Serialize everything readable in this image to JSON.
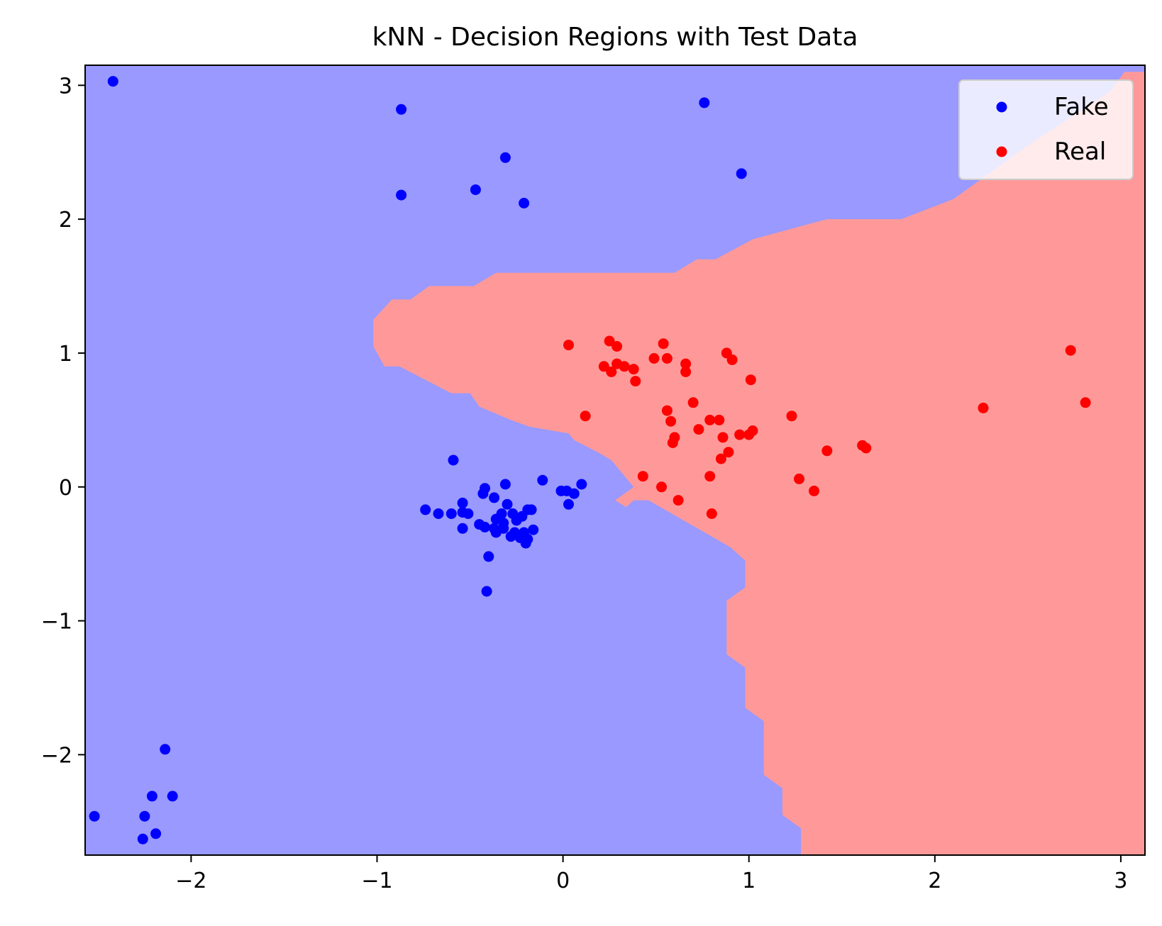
{
  "chart_data": {
    "type": "scatter",
    "title": "kNN - Decision Regions with Test Data",
    "xlabel": "",
    "ylabel": "",
    "xlim": [
      -2.57,
      3.13
    ],
    "ylim": [
      -2.75,
      3.15
    ],
    "x_ticks": [
      {
        "value": -2,
        "label": "−2"
      },
      {
        "value": -1,
        "label": "−1"
      },
      {
        "value": 0,
        "label": "0"
      },
      {
        "value": 1,
        "label": "1"
      },
      {
        "value": 2,
        "label": "2"
      },
      {
        "value": 3,
        "label": "3"
      }
    ],
    "y_ticks": [
      {
        "value": -2,
        "label": "−2"
      },
      {
        "value": -1,
        "label": "−1"
      },
      {
        "value": 0,
        "label": "0"
      },
      {
        "value": 1,
        "label": "1"
      },
      {
        "value": 2,
        "label": "2"
      },
      {
        "value": 3,
        "label": "3"
      }
    ],
    "grid": false,
    "legend_position": "top-right",
    "regions": [
      {
        "class": "Fake",
        "color": "#9999ff",
        "extent": "full"
      },
      {
        "class": "Real",
        "color": "#ff9999",
        "boundary": [
          [
            3.13,
            3.1
          ],
          [
            3.13,
            -2.75
          ],
          [
            1.28,
            -2.75
          ],
          [
            1.28,
            -2.55
          ],
          [
            1.18,
            -2.45
          ],
          [
            1.18,
            -2.25
          ],
          [
            1.08,
            -2.15
          ],
          [
            1.08,
            -1.75
          ],
          [
            0.98,
            -1.65
          ],
          [
            0.98,
            -1.35
          ],
          [
            0.88,
            -1.25
          ],
          [
            0.88,
            -0.85
          ],
          [
            0.98,
            -0.75
          ],
          [
            0.98,
            -0.55
          ],
          [
            0.9,
            -0.45
          ],
          [
            0.46,
            -0.1
          ],
          [
            0.4,
            -0.1
          ],
          [
            0.38,
            -0.1
          ],
          [
            0.34,
            -0.15
          ],
          [
            0.28,
            -0.1
          ],
          [
            0.38,
            0.0
          ],
          [
            0.26,
            0.2
          ],
          [
            0.2,
            0.25
          ],
          [
            0.06,
            0.35
          ],
          [
            0.03,
            0.4
          ],
          [
            -0.18,
            0.45
          ],
          [
            -0.28,
            0.5
          ],
          [
            -0.45,
            0.6
          ],
          [
            -0.5,
            0.7
          ],
          [
            -0.6,
            0.7
          ],
          [
            -0.88,
            0.9
          ],
          [
            -0.96,
            0.9
          ],
          [
            -1.02,
            1.05
          ],
          [
            -1.02,
            1.25
          ],
          [
            -0.92,
            1.4
          ],
          [
            -0.82,
            1.4
          ],
          [
            -0.72,
            1.5
          ],
          [
            -0.48,
            1.5
          ],
          [
            -0.36,
            1.6
          ],
          [
            0.6,
            1.6
          ],
          [
            0.72,
            1.7
          ],
          [
            0.82,
            1.7
          ],
          [
            1.02,
            1.85
          ],
          [
            1.42,
            2.0
          ],
          [
            1.82,
            2.0
          ],
          [
            2.1,
            2.15
          ],
          [
            2.3,
            2.35
          ],
          [
            2.5,
            2.55
          ],
          [
            2.72,
            2.75
          ],
          [
            2.94,
            2.95
          ],
          [
            3.02,
            3.1
          ]
        ]
      }
    ],
    "series": [
      {
        "name": "Fake",
        "color": "#0000ff",
        "points": [
          [
            -2.42,
            3.03
          ],
          [
            -0.87,
            2.82
          ],
          [
            -0.87,
            2.18
          ],
          [
            -0.47,
            2.22
          ],
          [
            -0.31,
            2.46
          ],
          [
            -0.21,
            2.12
          ],
          [
            0.76,
            2.87
          ],
          [
            0.96,
            2.34
          ],
          [
            -0.59,
            0.2
          ],
          [
            -0.11,
            0.05
          ],
          [
            0.1,
            0.02
          ],
          [
            -0.31,
            0.02
          ],
          [
            -0.42,
            -0.01
          ],
          [
            -0.01,
            -0.03
          ],
          [
            0.02,
            -0.03
          ],
          [
            0.06,
            -0.05
          ],
          [
            -0.43,
            -0.05
          ],
          [
            -0.37,
            -0.08
          ],
          [
            0.03,
            -0.13
          ],
          [
            -0.54,
            -0.12
          ],
          [
            -0.3,
            -0.13
          ],
          [
            -0.74,
            -0.17
          ],
          [
            -0.19,
            -0.17
          ],
          [
            -0.67,
            -0.2
          ],
          [
            -0.6,
            -0.2
          ],
          [
            -0.54,
            -0.19
          ],
          [
            -0.17,
            -0.17
          ],
          [
            -0.51,
            -0.2
          ],
          [
            -0.33,
            -0.2
          ],
          [
            -0.27,
            -0.2
          ],
          [
            -0.22,
            -0.22
          ],
          [
            -0.36,
            -0.24
          ],
          [
            -0.34,
            -0.23
          ],
          [
            -0.25,
            -0.25
          ],
          [
            -0.32,
            -0.27
          ],
          [
            -0.45,
            -0.28
          ],
          [
            -0.42,
            -0.3
          ],
          [
            -0.54,
            -0.31
          ],
          [
            -0.37,
            -0.31
          ],
          [
            -0.32,
            -0.31
          ],
          [
            -0.16,
            -0.32
          ],
          [
            -0.21,
            -0.34
          ],
          [
            -0.36,
            -0.34
          ],
          [
            -0.26,
            -0.34
          ],
          [
            -0.28,
            -0.37
          ],
          [
            -0.23,
            -0.38
          ],
          [
            -0.19,
            -0.39
          ],
          [
            -0.2,
            -0.42
          ],
          [
            -0.4,
            -0.52
          ],
          [
            -0.41,
            -0.78
          ],
          [
            -2.14,
            -1.96
          ],
          [
            -2.21,
            -2.31
          ],
          [
            -2.1,
            -2.31
          ],
          [
            -2.52,
            -2.46
          ],
          [
            -2.25,
            -2.46
          ],
          [
            -2.19,
            -2.59
          ],
          [
            -2.26,
            -2.63
          ]
        ]
      },
      {
        "name": "Real",
        "color": "#ff0000",
        "points": [
          [
            0.03,
            1.06
          ],
          [
            0.25,
            1.09
          ],
          [
            0.29,
            1.05
          ],
          [
            0.54,
            1.07
          ],
          [
            0.22,
            0.9
          ],
          [
            0.29,
            0.92
          ],
          [
            0.33,
            0.9
          ],
          [
            0.38,
            0.88
          ],
          [
            0.26,
            0.86
          ],
          [
            0.49,
            0.96
          ],
          [
            0.56,
            0.96
          ],
          [
            0.66,
            0.92
          ],
          [
            0.66,
            0.86
          ],
          [
            0.88,
            1.0
          ],
          [
            0.91,
            0.95
          ],
          [
            0.39,
            0.79
          ],
          [
            1.01,
            0.8
          ],
          [
            0.7,
            0.63
          ],
          [
            0.12,
            0.53
          ],
          [
            0.56,
            0.57
          ],
          [
            0.58,
            0.49
          ],
          [
            0.79,
            0.5
          ],
          [
            0.84,
            0.5
          ],
          [
            1.23,
            0.53
          ],
          [
            0.73,
            0.43
          ],
          [
            1.02,
            0.42
          ],
          [
            0.95,
            0.39
          ],
          [
            1.0,
            0.39
          ],
          [
            0.6,
            0.37
          ],
          [
            0.86,
            0.37
          ],
          [
            0.59,
            0.33
          ],
          [
            1.61,
            0.31
          ],
          [
            1.63,
            0.29
          ],
          [
            1.42,
            0.27
          ],
          [
            0.89,
            0.26
          ],
          [
            0.85,
            0.21
          ],
          [
            0.43,
            0.08
          ],
          [
            0.79,
            0.08
          ],
          [
            1.27,
            0.06
          ],
          [
            0.53,
            0.0
          ],
          [
            1.35,
            -0.03
          ],
          [
            0.62,
            -0.1
          ],
          [
            0.8,
            -0.2
          ],
          [
            2.26,
            0.59
          ],
          [
            2.73,
            1.02
          ],
          [
            2.81,
            0.63
          ]
        ]
      }
    ]
  }
}
